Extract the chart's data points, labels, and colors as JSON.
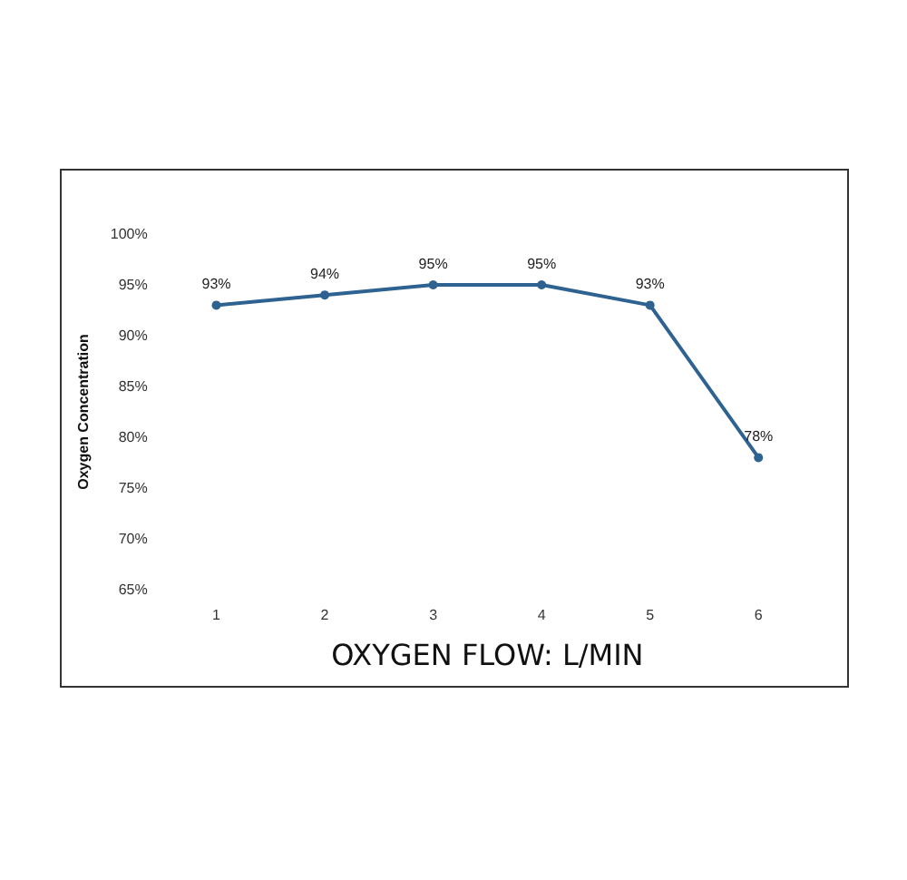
{
  "chart_data": {
    "type": "line",
    "xlabel": "OXYGEN FLOW: L/MIN",
    "ylabel": "Oxygen Concentration",
    "categories": [
      "1",
      "2",
      "3",
      "4",
      "5",
      "6"
    ],
    "series": [
      {
        "color": "#2e6391",
        "values": [
          93,
          94,
          95,
          95,
          93,
          78
        ],
        "value_labels": [
          "93%",
          "94%",
          "95%",
          "95%",
          "93%",
          "78%"
        ]
      }
    ],
    "ylim": [
      65,
      100
    ],
    "yticks": [
      {
        "value": 65,
        "label": "65%"
      },
      {
        "value": 70,
        "label": "70%"
      },
      {
        "value": 75,
        "label": "75%"
      },
      {
        "value": 80,
        "label": "80%"
      },
      {
        "value": 85,
        "label": "85%"
      },
      {
        "value": 90,
        "label": "90%"
      },
      {
        "value": 95,
        "label": "95%"
      },
      {
        "value": 100,
        "label": "100%"
      }
    ],
    "grid": false,
    "marker": "circle",
    "line_style": "solid"
  }
}
